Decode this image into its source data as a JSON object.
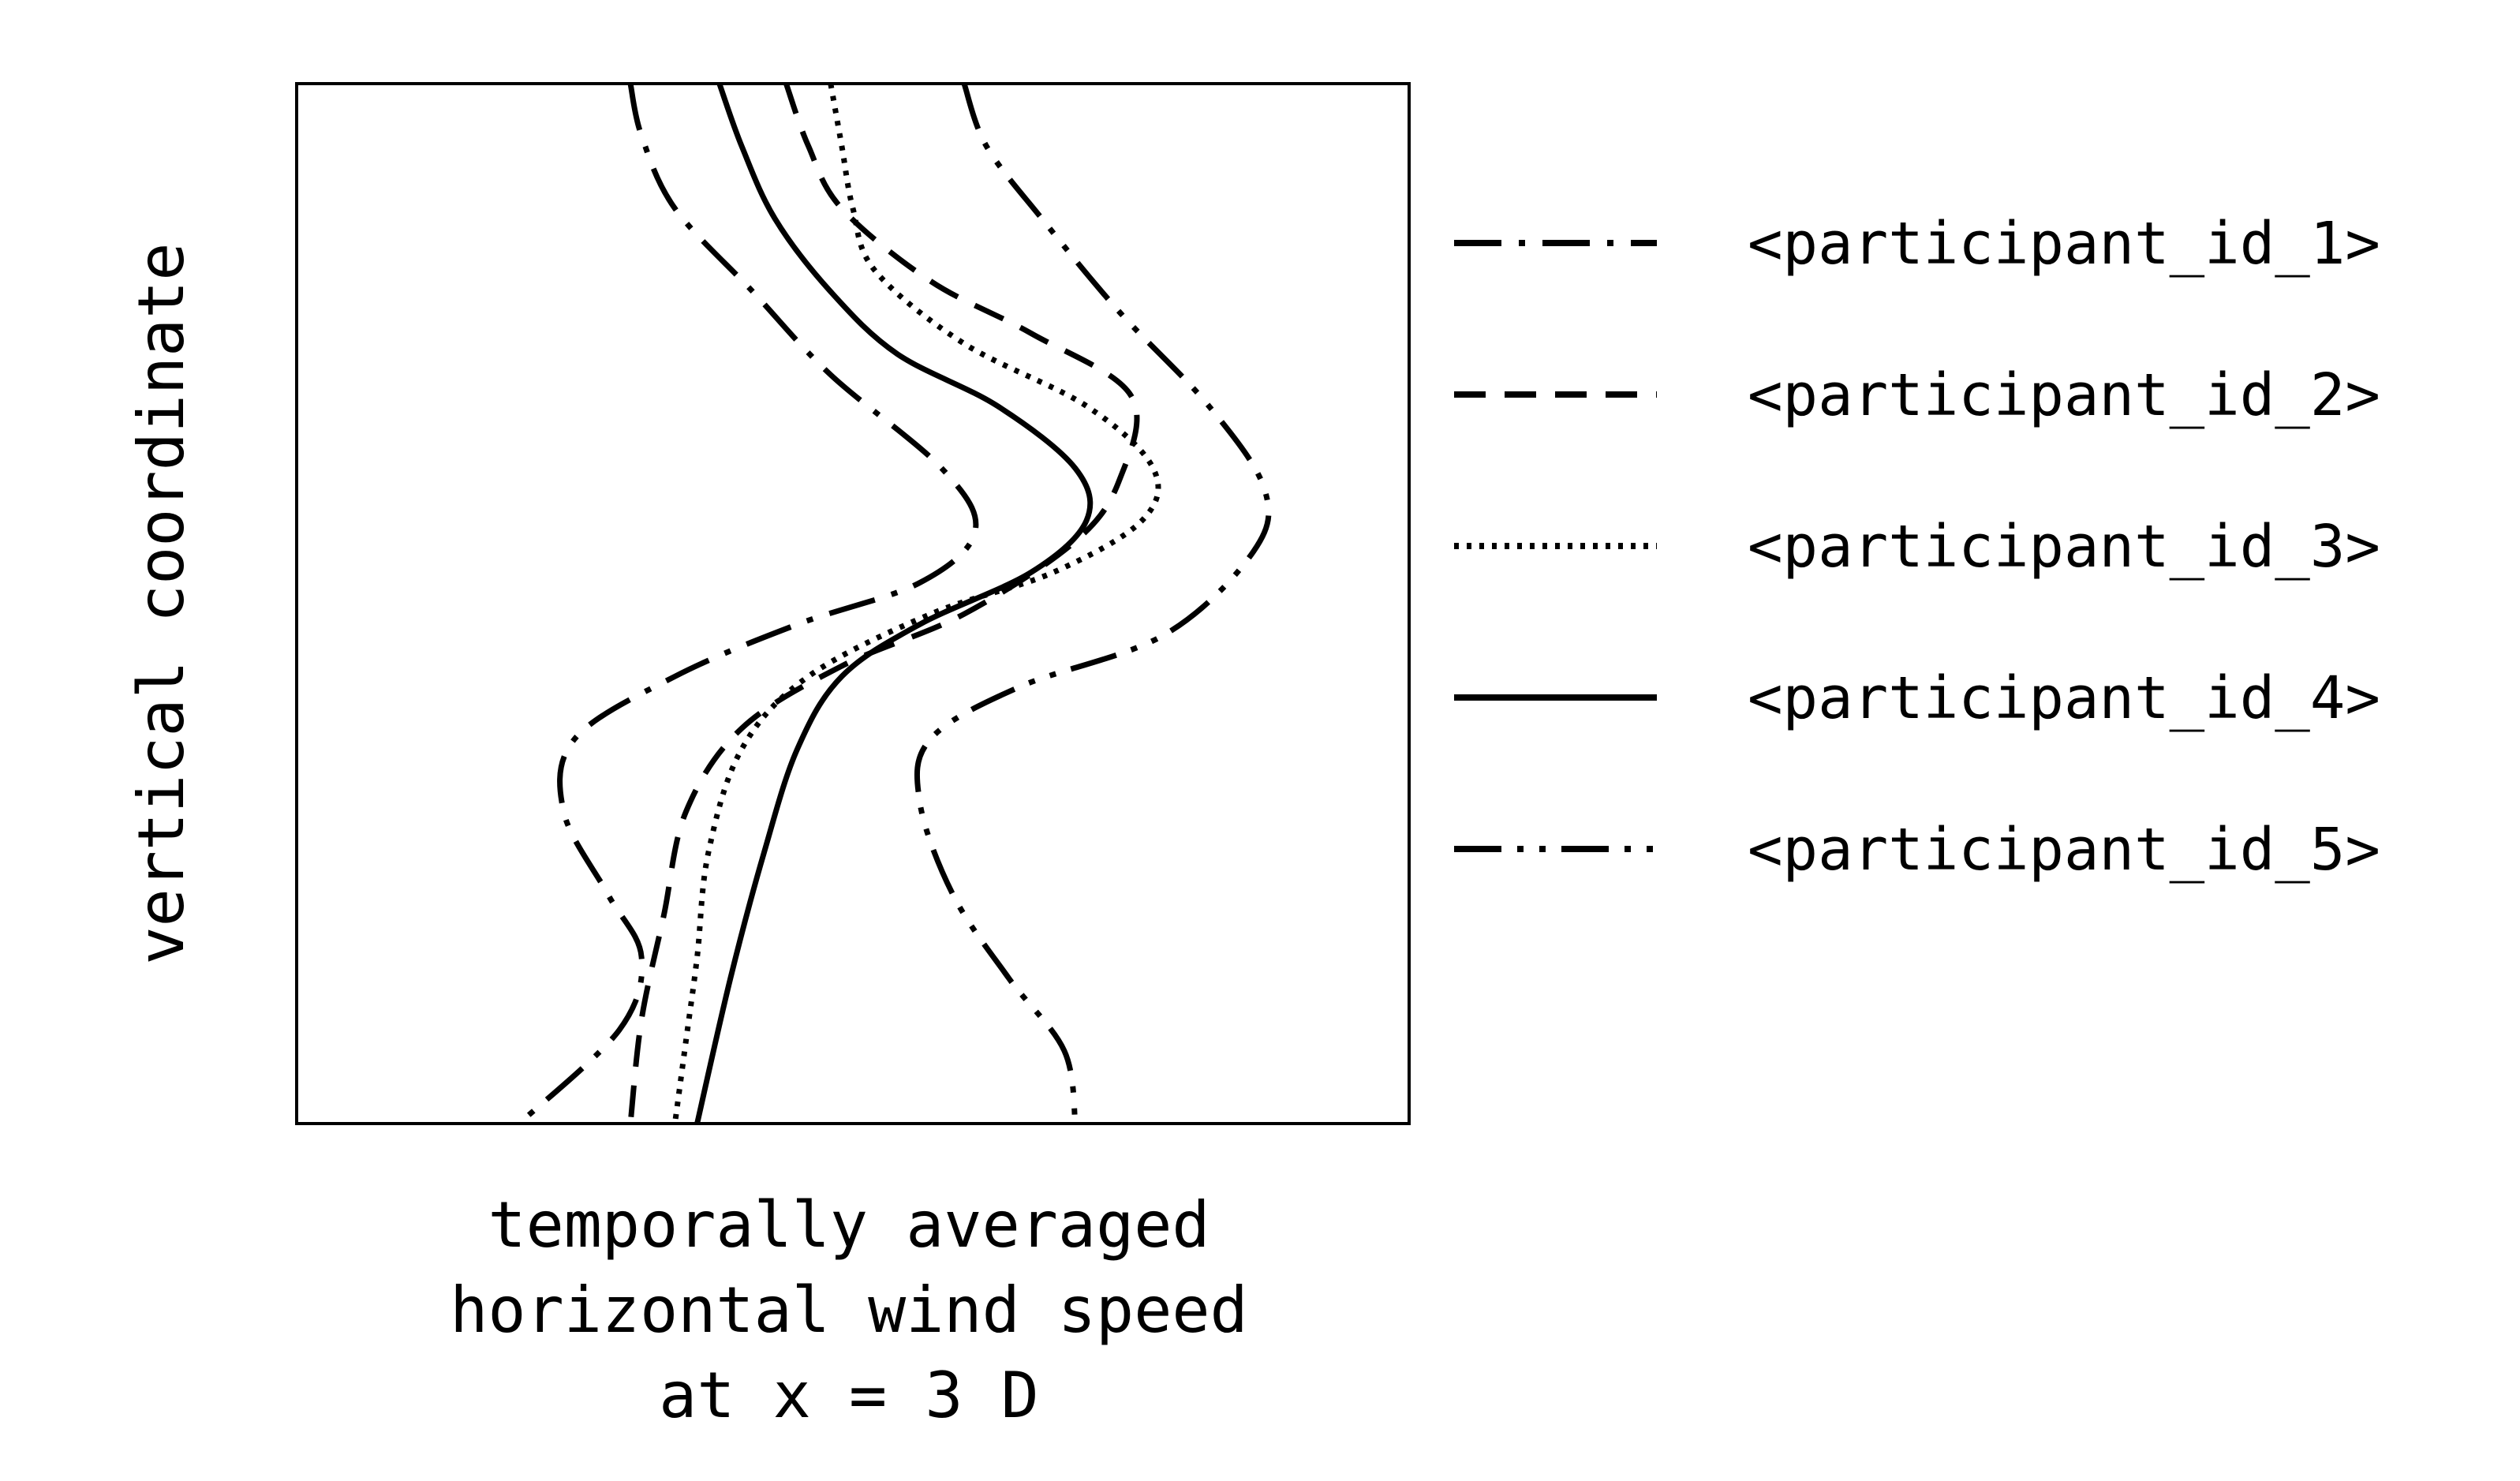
{
  "chart_data": {
    "type": "line",
    "title": "",
    "xlabel": [
      "temporally averaged",
      "horizontal wind speed",
      "at x = 3 D"
    ],
    "ylabel": "vertical coordinate",
    "xlim": [
      0,
      1
    ],
    "ylim": [
      0,
      1
    ],
    "grid": false,
    "ticks": false,
    "legend_position": "right",
    "series": [
      {
        "name": "<participant_id_1>",
        "dash": "dashdot",
        "points": [
          [
            0.3,
            1.0
          ],
          [
            0.31,
            0.95
          ],
          [
            0.34,
            0.88
          ],
          [
            0.41,
            0.8
          ],
          [
            0.48,
            0.72
          ],
          [
            0.58,
            0.63
          ],
          [
            0.61,
            0.57
          ],
          [
            0.56,
            0.52
          ],
          [
            0.45,
            0.48
          ],
          [
            0.34,
            0.43
          ],
          [
            0.25,
            0.37
          ],
          [
            0.24,
            0.3
          ],
          [
            0.28,
            0.22
          ],
          [
            0.31,
            0.16
          ],
          [
            0.29,
            0.09
          ],
          [
            0.2,
            0.0
          ]
        ]
      },
      {
        "name": "<participant_id_2>",
        "dash": "dashed",
        "points": [
          [
            0.44,
            1.0
          ],
          [
            0.46,
            0.94
          ],
          [
            0.49,
            0.88
          ],
          [
            0.57,
            0.81
          ],
          [
            0.66,
            0.76
          ],
          [
            0.75,
            0.7
          ],
          [
            0.74,
            0.62
          ],
          [
            0.7,
            0.56
          ],
          [
            0.6,
            0.49
          ],
          [
            0.49,
            0.44
          ],
          [
            0.4,
            0.38
          ],
          [
            0.35,
            0.3
          ],
          [
            0.33,
            0.2
          ],
          [
            0.31,
            0.1
          ],
          [
            0.3,
            0.0
          ]
        ]
      },
      {
        "name": "<participant_id_3>",
        "dash": "dotted",
        "points": [
          [
            0.48,
            1.0
          ],
          [
            0.49,
            0.94
          ],
          [
            0.5,
            0.88
          ],
          [
            0.52,
            0.82
          ],
          [
            0.6,
            0.75
          ],
          [
            0.71,
            0.69
          ],
          [
            0.77,
            0.63
          ],
          [
            0.76,
            0.58
          ],
          [
            0.68,
            0.53
          ],
          [
            0.57,
            0.49
          ],
          [
            0.46,
            0.43
          ],
          [
            0.4,
            0.36
          ],
          [
            0.37,
            0.26
          ],
          [
            0.36,
            0.16
          ],
          [
            0.35,
            0.08
          ],
          [
            0.34,
            0.0
          ]
        ]
      },
      {
        "name": "<participant_id_4>",
        "dash": "solid",
        "points": [
          [
            0.38,
            1.0
          ],
          [
            0.4,
            0.94
          ],
          [
            0.43,
            0.87
          ],
          [
            0.48,
            0.8
          ],
          [
            0.54,
            0.74
          ],
          [
            0.63,
            0.69
          ],
          [
            0.7,
            0.63
          ],
          [
            0.71,
            0.58
          ],
          [
            0.66,
            0.53
          ],
          [
            0.56,
            0.48
          ],
          [
            0.49,
            0.43
          ],
          [
            0.45,
            0.36
          ],
          [
            0.42,
            0.26
          ],
          [
            0.39,
            0.14
          ],
          [
            0.36,
            0.0
          ]
        ]
      },
      {
        "name": "<participant_id_5>",
        "dash": "dashdotdot",
        "points": [
          [
            0.6,
            1.0
          ],
          [
            0.62,
            0.94
          ],
          [
            0.67,
            0.87
          ],
          [
            0.74,
            0.78
          ],
          [
            0.82,
            0.69
          ],
          [
            0.87,
            0.61
          ],
          [
            0.86,
            0.55
          ],
          [
            0.78,
            0.47
          ],
          [
            0.65,
            0.42
          ],
          [
            0.57,
            0.37
          ],
          [
            0.56,
            0.31
          ],
          [
            0.59,
            0.22
          ],
          [
            0.64,
            0.14
          ],
          [
            0.69,
            0.07
          ],
          [
            0.7,
            0.0
          ]
        ]
      }
    ]
  }
}
